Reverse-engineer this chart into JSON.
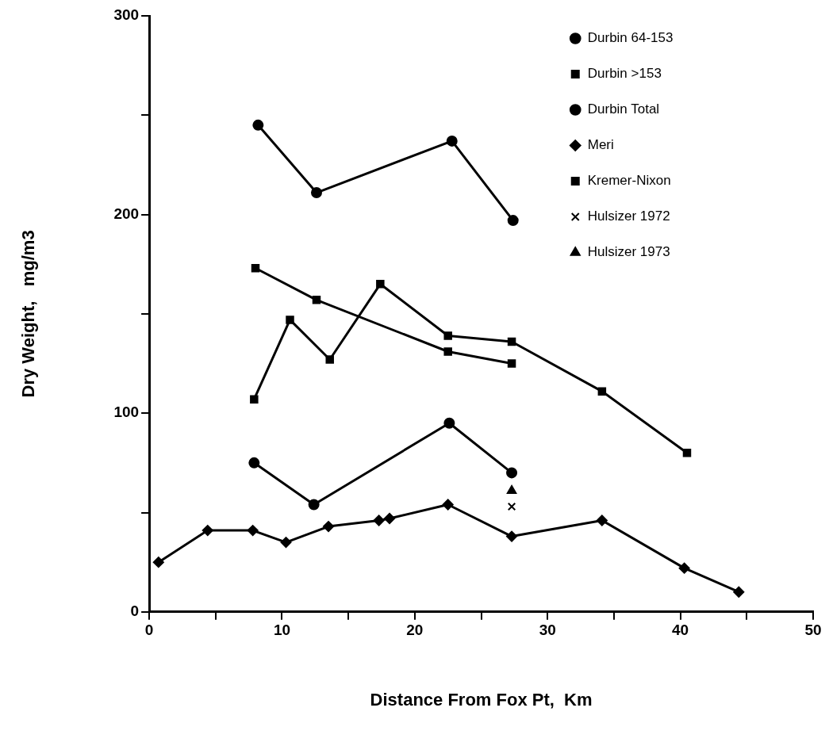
{
  "chart_data": {
    "type": "line",
    "xlabel": "Distance From Fox Pt,  Km",
    "ylabel": "Dry Weight,   mg/m3",
    "xlim": [
      0,
      50
    ],
    "xticks": [
      0,
      {
        "value": 5,
        "label": null
      },
      10,
      {
        "value": 15,
        "label": null
      },
      20,
      {
        "value": 25,
        "label": null
      },
      30,
      {
        "value": 35,
        "label": null
      },
      40,
      {
        "value": 45,
        "label": null
      },
      50
    ],
    "ylim": [
      0,
      300
    ],
    "yticks": [
      0,
      {
        "value": 50,
        "label": null
      },
      100,
      {
        "value": 150,
        "label": null
      },
      200,
      {
        "value": 250,
        "label": null
      },
      300
    ],
    "grid": false,
    "legend": "top right",
    "line_style": "solid",
    "series": [
      {
        "name": "Durbin 64-153",
        "color": "#000000",
        "marker": "circle",
        "x": [
          7.9,
          12.4,
          22.6,
          27.3
        ],
        "values": [
          75,
          54,
          95,
          70
        ]
      },
      {
        "name": "Durbin >153",
        "color": "#000000",
        "marker": "square",
        "x": [
          8.0,
          12.6,
          22.5,
          27.3
        ],
        "values": [
          173,
          157,
          131,
          125
        ]
      },
      {
        "name": "Durbin Total",
        "color": "#000000",
        "marker": "circle",
        "x": [
          8.2,
          12.6,
          22.8,
          27.4
        ],
        "values": [
          245,
          211,
          237,
          197
        ]
      },
      {
        "name": "Meri",
        "color": "#000000",
        "marker": "diamond",
        "x": [
          0.7,
          4.4,
          7.8,
          10.3,
          13.5,
          17.3,
          18.1,
          22.5,
          27.3,
          34.1,
          40.3,
          44.4
        ],
        "values": [
          25,
          41,
          41,
          35,
          43,
          46,
          47,
          54,
          38,
          46,
          22,
          10
        ]
      },
      {
        "name": "Kremer-Nixon",
        "color": "#000000",
        "marker": "square",
        "x": [
          7.9,
          10.6,
          13.6,
          17.4,
          22.5,
          27.3,
          34.1,
          40.5
        ],
        "values": [
          107,
          147,
          127,
          165,
          139,
          136,
          111,
          80
        ]
      },
      {
        "name": "Hulsizer 1972",
        "color": "#000000",
        "marker": "cross",
        "x": [
          27.3
        ],
        "values": [
          53
        ]
      },
      {
        "name": "Hulsizer 1973",
        "color": "#000000",
        "marker": "triangle",
        "x": [
          27.3
        ],
        "values": [
          61
        ]
      }
    ]
  }
}
